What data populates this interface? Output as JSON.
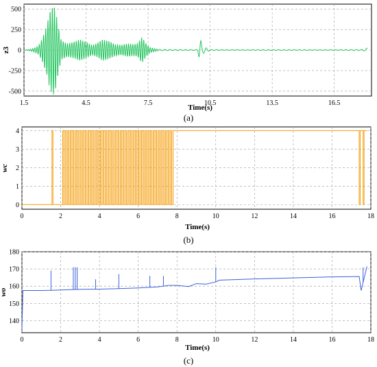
{
  "panels_caption": [
    "(a)",
    "(b)",
    "(c)"
  ],
  "chart_data": [
    {
      "type": "line",
      "panel_label": "(a)",
      "xlabel": "Time(s)",
      "ylabel": "z3",
      "xlim": [
        1.5,
        18.3
      ],
      "ylim": [
        -560,
        560
      ],
      "xticks": [
        "1.5",
        "4.5",
        "7.5",
        "10.5",
        "13.5",
        "16.5"
      ],
      "xtick_values": [
        1.5,
        4.5,
        7.5,
        10.5,
        13.5,
        16.5
      ],
      "yticks": [
        "500",
        "250",
        "0",
        "-250",
        "-500"
      ],
      "ytick_values": [
        500,
        250,
        0,
        -250,
        -500
      ],
      "grid": true,
      "color": "#22c55e",
      "series": [
        {
          "x": [
            1.5,
            1.8,
            2.0,
            2.2,
            2.4,
            2.6,
            2.75,
            2.9,
            3.0,
            3.15,
            3.3,
            3.6,
            3.9,
            4.2,
            4.5,
            4.8,
            5.0,
            5.3,
            5.6,
            5.9,
            6.2,
            6.5,
            6.8,
            7.0,
            7.2,
            7.4,
            7.6,
            8.0,
            9.0,
            9.9,
            10.0,
            10.05,
            10.1,
            10.5,
            12.0,
            14.0,
            16.0,
            17.5,
            18.0,
            18.1
          ],
          "amplitude": [
            0,
            10,
            25,
            50,
            150,
            300,
            480,
            550,
            520,
            300,
            120,
            80,
            100,
            130,
            100,
            60,
            80,
            130,
            110,
            70,
            60,
            80,
            70,
            80,
            160,
            80,
            30,
            8,
            5,
            5,
            160,
            120,
            50,
            5,
            4,
            4,
            4,
            5,
            10,
            30
          ]
        }
      ]
    },
    {
      "type": "line",
      "panel_label": "(b)",
      "xlabel": "Time(s)",
      "ylabel": "wc",
      "xlim": [
        0,
        18
      ],
      "ylim": [
        -0.25,
        4.2
      ],
      "xticks": [
        "0",
        "2",
        "4",
        "6",
        "8",
        "10",
        "12",
        "14",
        "16",
        "18"
      ],
      "xtick_values": [
        0,
        2,
        4,
        6,
        8,
        10,
        12,
        14,
        16,
        18
      ],
      "yticks": [
        "4",
        "3",
        "2",
        "1",
        "0"
      ],
      "ytick_values": [
        4,
        3,
        2,
        1,
        0
      ],
      "grid": true,
      "color": "#f59e0b",
      "series": [
        {
          "levels": [
            0,
            4
          ],
          "segments": [
            {
              "x_start": 0,
              "x_end": 1.55,
              "value": 0
            },
            {
              "x_start": 1.55,
              "x_end": 1.6,
              "value": 4
            },
            {
              "x_start": 1.6,
              "x_end": 2.1,
              "value": 0
            },
            {
              "x_start": 2.1,
              "x_end": 7.8,
              "value": "switching 0-4"
            },
            {
              "x_start": 7.8,
              "x_end": 17.4,
              "value": 4
            },
            {
              "x_start": 17.4,
              "x_end": 17.45,
              "value": 0
            },
            {
              "x_start": 17.45,
              "x_end": 17.6,
              "value": 4
            },
            {
              "x_start": 17.6,
              "x_end": 17.65,
              "value": 0
            },
            {
              "x_start": 17.65,
              "x_end": 17.8,
              "value": 4
            }
          ]
        }
      ]
    },
    {
      "type": "line",
      "panel_label": "(c)",
      "xlabel": "Time(s)",
      "ylabel": "wo",
      "xlim": [
        0,
        18
      ],
      "ylim": [
        133,
        180
      ],
      "xticks": [
        "0",
        "2",
        "4",
        "6",
        "8",
        "10",
        "12",
        "14",
        "16",
        "18"
      ],
      "xtick_values": [
        0,
        2,
        4,
        6,
        8,
        10,
        12,
        14,
        16,
        18
      ],
      "yticks": [
        "180",
        "170",
        "160",
        "150",
        "140"
      ],
      "ytick_values": [
        180,
        170,
        160,
        150,
        140
      ],
      "grid": true,
      "color": "#3b5fd9",
      "series": [
        {
          "x": [
            0,
            0.05,
            1.0,
            1.5,
            2.0,
            3.0,
            4.0,
            5.0,
            6.0,
            7.0,
            7.6,
            8.0,
            8.6,
            9.0,
            9.5,
            10.0,
            10.2,
            11.0,
            12.0,
            14.0,
            16.0,
            17.4,
            17.5,
            17.8
          ],
          "y": [
            135,
            157.5,
            157.5,
            157.6,
            157.8,
            158.2,
            158.3,
            158.6,
            159.0,
            159.6,
            160.5,
            160.5,
            159.8,
            161.5,
            161.2,
            162.5,
            163.5,
            163.8,
            164.2,
            164.8,
            165.4,
            165.6,
            157.5,
            171.5
          ],
          "spikes": [
            {
              "x": 1.5,
              "y": 169
            },
            {
              "x": 2.65,
              "y": 171
            },
            {
              "x": 2.75,
              "y": 171
            },
            {
              "x": 2.85,
              "y": 171
            },
            {
              "x": 3.8,
              "y": 164
            },
            {
              "x": 5.0,
              "y": 167
            },
            {
              "x": 6.6,
              "y": 166
            },
            {
              "x": 7.3,
              "y": 166
            },
            {
              "x": 10.0,
              "y": 171
            },
            {
              "x": 17.6,
              "y": 171
            }
          ]
        }
      ]
    }
  ]
}
